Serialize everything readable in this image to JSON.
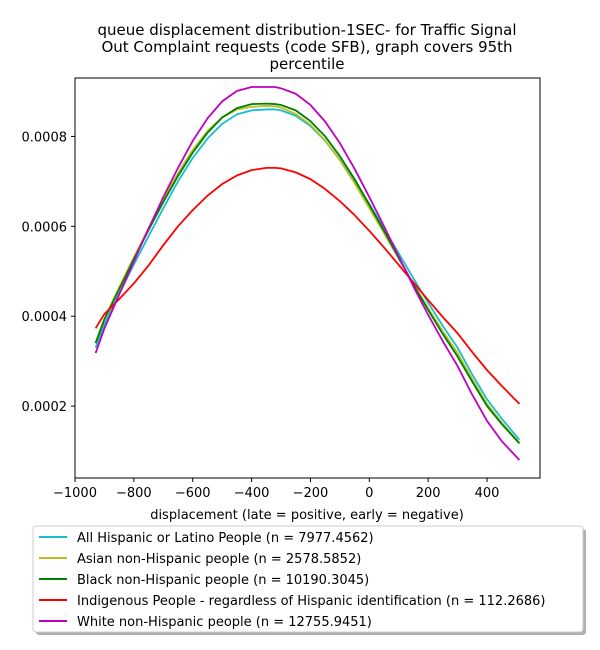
{
  "chart_data": {
    "type": "line",
    "title_lines": [
      "queue displacement distribution-1SEC-  for Traffic Signal",
      "Out Complaint  requests (code SFB), graph covers 95th",
      "percentile"
    ],
    "xlabel": "displacement (late = positive, early = negative)",
    "ylabel": "",
    "xlim": [
      -1000,
      580
    ],
    "ylim": [
      4e-05,
      0.00093
    ],
    "xticks": [
      -1000,
      -800,
      -600,
      -400,
      -200,
      0,
      200,
      400
    ],
    "xtick_labels": [
      "−1000",
      "−800",
      "−600",
      "−400",
      "−200",
      "0",
      "200",
      "400"
    ],
    "yticks": [
      0.0002,
      0.0004,
      0.0006,
      0.0008
    ],
    "ytick_labels": [
      "0.0002",
      "0.0004",
      "0.0006",
      "0.0008"
    ],
    "grid": false,
    "legend_position": "below plot",
    "x": [
      -930,
      -900,
      -850,
      -800,
      -750,
      -700,
      -650,
      -600,
      -550,
      -500,
      -450,
      -400,
      -350,
      -320,
      -300,
      -250,
      -200,
      -150,
      -100,
      -50,
      0,
      50,
      100,
      150,
      200,
      250,
      300,
      350,
      400,
      450,
      510
    ],
    "series": [
      {
        "name": "All Hispanic or Latino People (n = 7977.4562)",
        "color": "#17becf",
        "values": [
          0.00033,
          0.000382,
          0.00045,
          0.000515,
          0.000578,
          0.00064,
          0.0007,
          0.000752,
          0.000795,
          0.000828,
          0.000849,
          0.000858,
          0.00086,
          0.00086,
          0.000858,
          0.000846,
          0.000823,
          0.00079,
          0.000748,
          0.0007,
          0.00065,
          0.000595,
          0.00054,
          0.000484,
          0.00043,
          0.000378,
          0.00033,
          0.00027,
          0.000215,
          0.000172,
          0.000125
        ]
      },
      {
        "name": "Asian non-Hispanic people (n = 2578.5852)",
        "color": "#bcbd22",
        "values": [
          0.000342,
          0.000395,
          0.000464,
          0.000531,
          0.000596,
          0.00066,
          0.000718,
          0.00077,
          0.000812,
          0.000842,
          0.00086,
          0.000866,
          0.000868,
          0.000867,
          0.000864,
          0.00085,
          0.000826,
          0.000791,
          0.000747,
          0.000696,
          0.00064,
          0.000585,
          0.000528,
          0.000472,
          0.000418,
          0.000366,
          0.000318,
          0.00026,
          0.000205,
          0.000163,
          0.000118
        ]
      },
      {
        "name": "Black non-Hispanic people (n = 10190.3045)",
        "color": "#008000",
        "values": [
          0.00034,
          0.000393,
          0.00046,
          0.000527,
          0.000592,
          0.000654,
          0.000712,
          0.000764,
          0.000808,
          0.000842,
          0.000863,
          0.000872,
          0.000873,
          0.000872,
          0.00087,
          0.000858,
          0.000834,
          0.0008,
          0.000756,
          0.000705,
          0.000648,
          0.00059,
          0.00053,
          0.00047,
          0.000414,
          0.00036,
          0.00031,
          0.000254,
          0.0002,
          0.00016,
          0.000117
        ]
      },
      {
        "name": "Indigenous People - regardless of Hispanic identification (n = 112.2686)",
        "color": "#ff0000",
        "values": [
          0.000373,
          0.000405,
          0.000438,
          0.000473,
          0.000513,
          0.000558,
          0.0006,
          0.000636,
          0.000668,
          0.000694,
          0.000713,
          0.000725,
          0.00073,
          0.00073,
          0.000729,
          0.00072,
          0.000705,
          0.000683,
          0.000656,
          0.000625,
          0.00059,
          0.000553,
          0.000514,
          0.000475,
          0.000436,
          0.000398,
          0.000362,
          0.00032,
          0.00028,
          0.000245,
          0.000205
        ]
      },
      {
        "name": "White non-Hispanic people (n = 12755.9451)",
        "color": "#bf00bf",
        "values": [
          0.000318,
          0.000373,
          0.000448,
          0.000522,
          0.000595,
          0.000665,
          0.00073,
          0.00079,
          0.00084,
          0.000878,
          0.000901,
          0.00091,
          0.00091,
          0.00091,
          0.000907,
          0.000895,
          0.00087,
          0.000833,
          0.000785,
          0.000728,
          0.000665,
          0.0006,
          0.000533,
          0.000466,
          0.000403,
          0.000344,
          0.000289,
          0.000225,
          0.000167,
          0.000122,
          8e-05
        ]
      }
    ]
  }
}
